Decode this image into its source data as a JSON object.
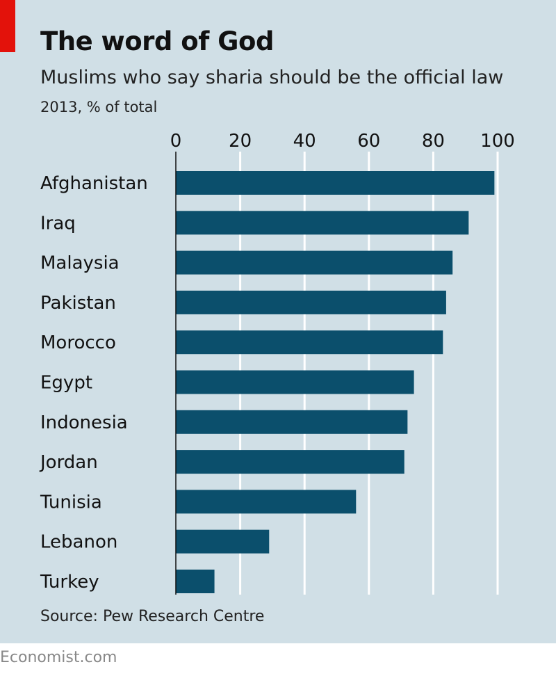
{
  "chart_data": {
    "type": "bar",
    "orientation": "horizontal",
    "title": "The word of God",
    "subtitle": "Muslims who say sharia should be the official law",
    "unit_label": "2013, % of total",
    "categories": [
      "Afghanistan",
      "Iraq",
      "Malaysia",
      "Pakistan",
      "Morocco",
      "Egypt",
      "Indonesia",
      "Jordan",
      "Tunisia",
      "Lebanon",
      "Turkey"
    ],
    "values": [
      99,
      91,
      86,
      84,
      83,
      74,
      72,
      71,
      56,
      29,
      12
    ],
    "xlim": [
      0,
      100
    ],
    "xticks": [
      0,
      20,
      40,
      60,
      80,
      100
    ],
    "grid": true,
    "bar_color": "#0b4f6c",
    "source": "Source: Pew Research Centre"
  },
  "footer": "Economist.com"
}
